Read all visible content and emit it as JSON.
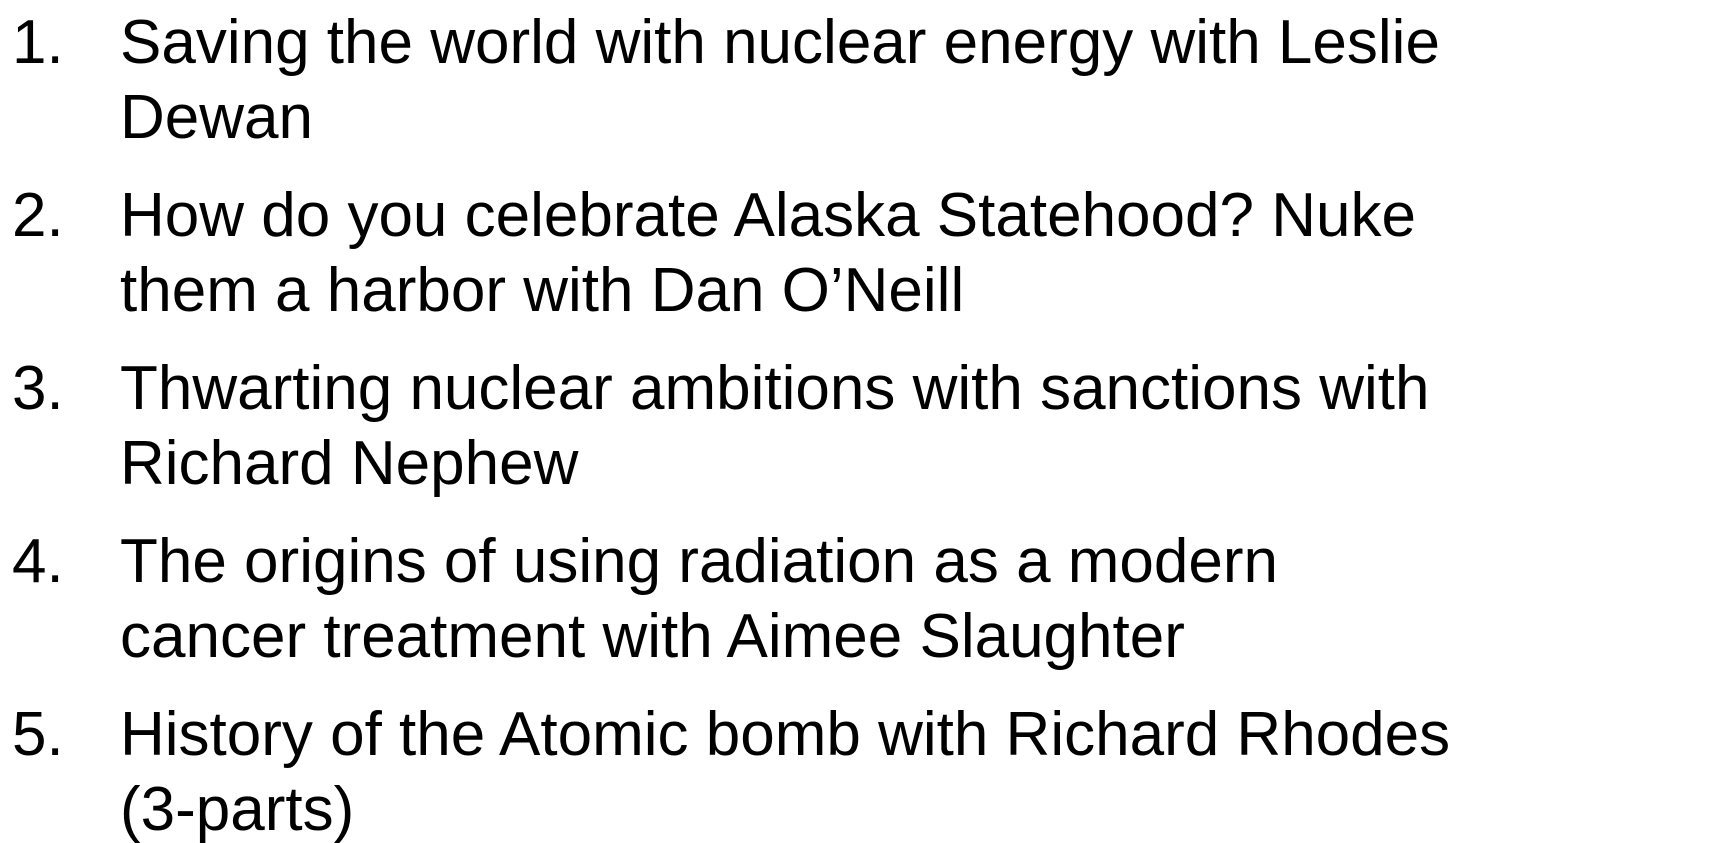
{
  "list": {
    "items": [
      {
        "number": "1.",
        "lines": [
          "Saving the world with nuclear energy with Leslie",
          "Dewan"
        ]
      },
      {
        "number": "2.",
        "lines": [
          "How do you celebrate Alaska Statehood? Nuke",
          "them a harbor with Dan O’Neill"
        ]
      },
      {
        "number": "3.",
        "lines": [
          "Thwarting nuclear ambitions with sanctions with",
          "Richard Nephew"
        ]
      },
      {
        "number": "4.",
        "lines": [
          "The origins of using radiation as a modern",
          "cancer treatment with Aimee Slaughter"
        ]
      },
      {
        "number": "5.",
        "lines": [
          "History of the Atomic bomb with Richard Rhodes",
          "(3-parts)"
        ]
      }
    ]
  }
}
